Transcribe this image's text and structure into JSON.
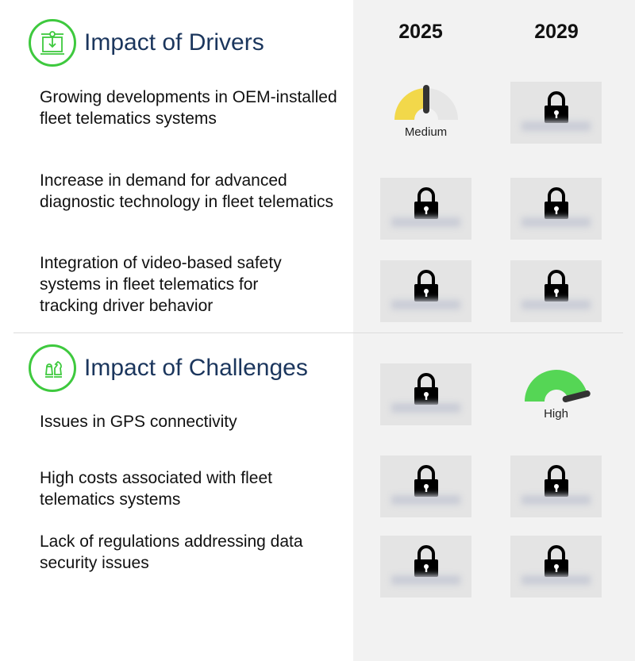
{
  "years": [
    "2025",
    "2029"
  ],
  "drivers": {
    "title": "Impact of Drivers",
    "icon": "circuit-download-icon",
    "items": [
      {
        "text": "Growing developments in OEM-installed fleet telematics systems",
        "y2025": "Medium",
        "y2029": "locked"
      },
      {
        "text": "Increase in demand for advanced diagnostic technology in fleet telematics",
        "y2025": "locked",
        "y2029": "locked"
      },
      {
        "text": "Integration of video-based safety systems in fleet telematics for tracking driver behavior",
        "y2025": "locked",
        "y2029": "locked"
      }
    ]
  },
  "challenges": {
    "title": "Impact of Challenges",
    "icon": "chess-icon",
    "items": [
      {
        "text": "Issues in GPS connectivity",
        "y2025": "locked",
        "y2029": "High"
      },
      {
        "text": "High costs associated with fleet telematics systems",
        "y2025": "locked",
        "y2029": "locked"
      },
      {
        "text": "Lack of regulations addressing data security issues",
        "y2025": "locked",
        "y2029": "locked"
      }
    ]
  },
  "colors": {
    "medium": "#f2d84a",
    "high": "#55d655",
    "title": "#1b365d",
    "iconRing": "#3ec93e"
  }
}
